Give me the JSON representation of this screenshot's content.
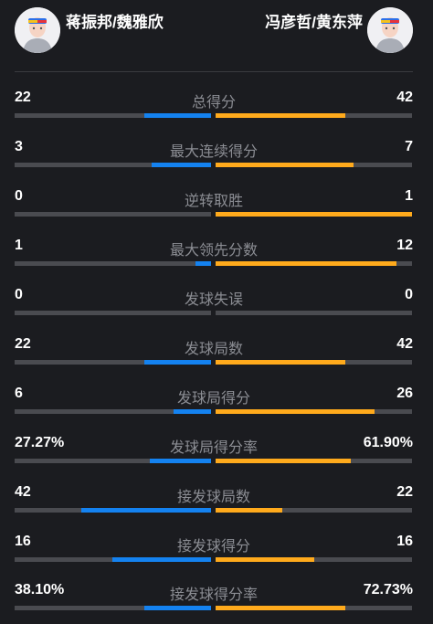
{
  "teams": {
    "left": {
      "name": "蒋振邦/魏雅欣",
      "avatar_icon": "player-avatar-icon"
    },
    "right": {
      "name": "冯彦哲/黄东萍",
      "avatar_icon": "player-avatar-icon"
    }
  },
  "colors": {
    "left_bar": "#1482f0",
    "right_bar": "#ffaa1c",
    "track": "#4a4b50"
  },
  "stats": [
    {
      "label": "总得分",
      "left": "22",
      "right": "42",
      "left_fill": 0.34,
      "right_fill": 0.66
    },
    {
      "label": "最大连续得分",
      "left": "3",
      "right": "7",
      "left_fill": 0.3,
      "right_fill": 0.7
    },
    {
      "label": "逆转取胜",
      "left": "0",
      "right": "1",
      "left_fill": 0.0,
      "right_fill": 1.0
    },
    {
      "label": "最大领先分数",
      "left": "1",
      "right": "12",
      "left_fill": 0.08,
      "right_fill": 0.92
    },
    {
      "label": "发球失误",
      "left": "0",
      "right": "0",
      "left_fill": 0.0,
      "right_fill": 0.0
    },
    {
      "label": "发球局数",
      "left": "22",
      "right": "42",
      "left_fill": 0.34,
      "right_fill": 0.66
    },
    {
      "label": "发球局得分",
      "left": "6",
      "right": "26",
      "left_fill": 0.19,
      "right_fill": 0.81
    },
    {
      "label": "发球局得分率",
      "left": "27.27%",
      "right": "61.90%",
      "left_fill": 0.31,
      "right_fill": 0.69
    },
    {
      "label": "接发球局数",
      "left": "42",
      "right": "22",
      "left_fill": 0.66,
      "right_fill": 0.34
    },
    {
      "label": "接发球得分",
      "left": "16",
      "right": "16",
      "left_fill": 0.5,
      "right_fill": 0.5
    },
    {
      "label": "接发球得分率",
      "left": "38.10%",
      "right": "72.73%",
      "left_fill": 0.34,
      "right_fill": 0.66
    }
  ]
}
